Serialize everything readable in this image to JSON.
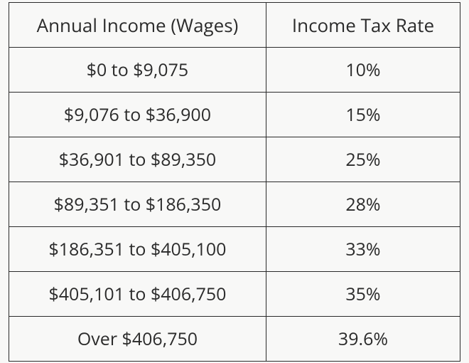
{
  "tax_table": {
    "type": "table",
    "columns": [
      "Annual Income (Wages)",
      "Income Tax Rate"
    ],
    "rows": [
      [
        "$0 to $9,075",
        "10%"
      ],
      [
        "$9,076 to $36,900",
        "15%"
      ],
      [
        "$36,901 to $89,350",
        "25%"
      ],
      [
        "$89,351 to $186,350",
        "28%"
      ],
      [
        "$186,351 to $405,100",
        "33%"
      ],
      [
        "$405,101 to $406,750",
        "35%"
      ],
      [
        "Over $406,750",
        "39.6%"
      ]
    ],
    "column_widths_percent": [
      57,
      43
    ],
    "border_color": "#2b2b2b",
    "text_color": "#2b2b2b",
    "background_color": "#f8f8f7",
    "header_fontsize": 26,
    "cell_fontsize": 25,
    "header_fontweight": 400
  }
}
